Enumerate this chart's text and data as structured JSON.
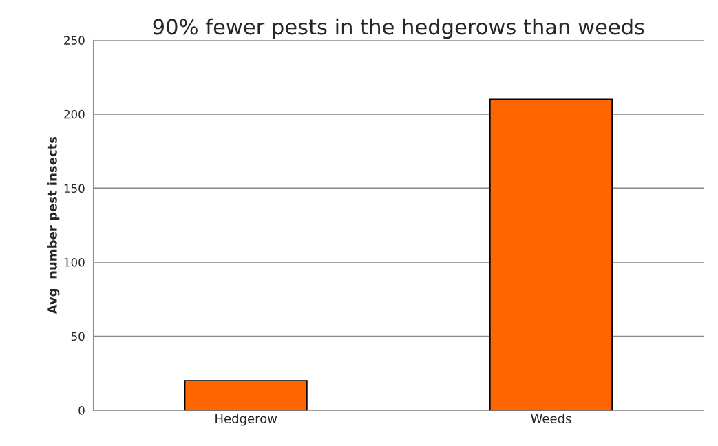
{
  "chart_data": {
    "type": "bar",
    "title": "90% fewer pests in the hedgerows than weeds",
    "ylabel": "Avg  number pest insects",
    "categories": [
      "Hedgerow",
      "Weeds"
    ],
    "values": [
      20,
      210
    ],
    "color": "#ff6600",
    "ylim": [
      0,
      250
    ],
    "yticks": [
      0,
      50,
      100,
      150,
      200,
      250
    ],
    "grid": "y"
  }
}
